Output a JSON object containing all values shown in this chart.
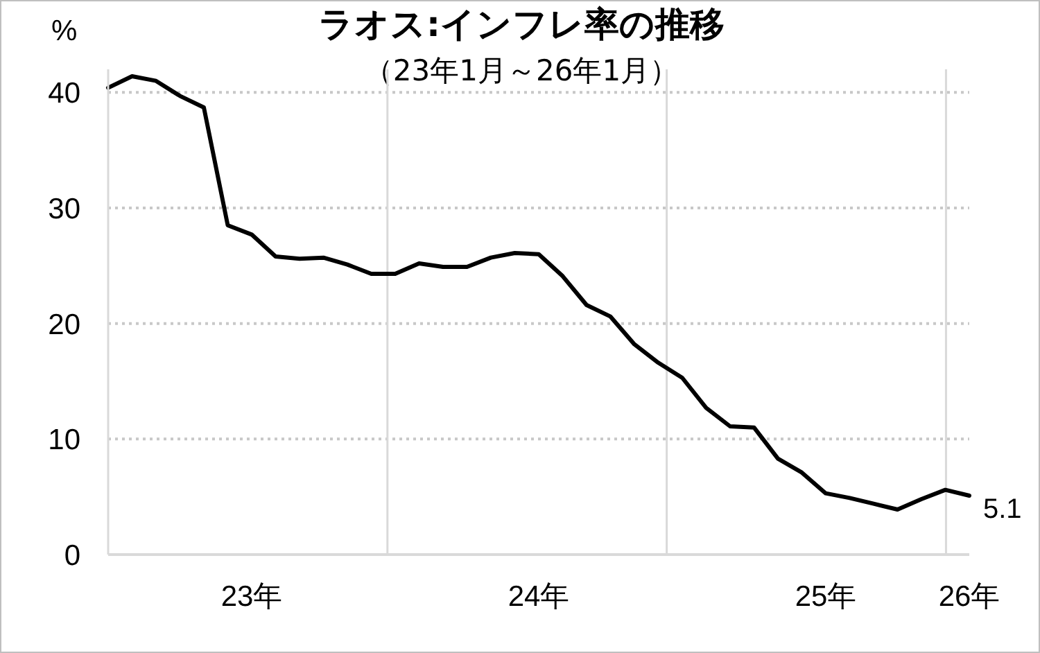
{
  "chart_data": {
    "type": "line",
    "title": "ラオス:インフレ率の推移",
    "subtitle": "（23年1月～26年1月）",
    "ylabel": "%",
    "categories": [
      null,
      null,
      null,
      null,
      null,
      null,
      "23年",
      null,
      null,
      null,
      null,
      null,
      null,
      null,
      null,
      null,
      null,
      null,
      "24年",
      null,
      null,
      null,
      null,
      null,
      null,
      null,
      null,
      null,
      null,
      null,
      "25年",
      null,
      null,
      null,
      null,
      null,
      "26年"
    ],
    "series": [
      {
        "color": "#000000",
        "values": [
          40.4,
          41.4,
          41.0,
          39.7,
          38.7,
          28.5,
          27.7,
          25.8,
          25.6,
          25.7,
          25.1,
          24.3,
          24.3,
          25.2,
          24.9,
          24.9,
          25.7,
          26.1,
          26.0,
          24.1,
          21.6,
          20.6,
          18.2,
          16.6,
          15.3,
          12.7,
          11.1,
          11.0,
          8.3,
          7.1,
          5.3,
          4.9,
          4.4,
          3.9,
          4.8,
          5.6,
          5.1
        ],
        "value_labels": [
          null,
          null,
          null,
          null,
          null,
          null,
          null,
          null,
          null,
          null,
          null,
          null,
          null,
          null,
          null,
          null,
          null,
          null,
          null,
          null,
          null,
          null,
          null,
          null,
          null,
          null,
          null,
          null,
          null,
          null,
          null,
          null,
          null,
          null,
          null,
          null,
          "5.1"
        ]
      }
    ],
    "ylim": [
      0,
      42
    ],
    "yticks": [
      0,
      10,
      20,
      30,
      40
    ],
    "grid": true,
    "marker": "none",
    "line_style": "solid"
  }
}
